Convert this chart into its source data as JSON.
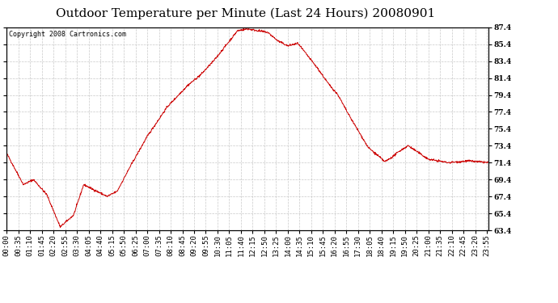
{
  "title": "Outdoor Temperature per Minute (Last 24 Hours) 20080901",
  "copyright": "Copyright 2008 Cartronics.com",
  "line_color": "#cc0000",
  "bg_color": "#ffffff",
  "plot_bg_color": "#ffffff",
  "grid_color": "#bbbbbb",
  "ylim": [
    63.4,
    87.4
  ],
  "yticks": [
    63.4,
    65.4,
    67.4,
    69.4,
    71.4,
    73.4,
    75.4,
    77.4,
    79.4,
    81.4,
    83.4,
    85.4,
    87.4
  ],
  "xtick_labels": [
    "00:00",
    "00:35",
    "01:10",
    "01:45",
    "02:20",
    "02:55",
    "03:30",
    "04:05",
    "04:40",
    "05:15",
    "05:50",
    "06:25",
    "07:00",
    "07:35",
    "08:10",
    "08:45",
    "09:20",
    "09:55",
    "10:30",
    "11:05",
    "11:40",
    "12:15",
    "12:50",
    "13:25",
    "14:00",
    "14:35",
    "15:10",
    "15:45",
    "16:20",
    "16:55",
    "17:30",
    "18:05",
    "18:40",
    "19:15",
    "19:50",
    "20:25",
    "21:00",
    "21:35",
    "22:10",
    "22:45",
    "23:20",
    "23:55"
  ],
  "title_fontsize": 11,
  "tick_fontsize": 6.5,
  "copyright_fontsize": 6,
  "keypoints_t": [
    0,
    50,
    80,
    120,
    160,
    200,
    230,
    260,
    300,
    330,
    370,
    420,
    480,
    540,
    580,
    620,
    660,
    690,
    720,
    750,
    780,
    810,
    840,
    870,
    900,
    930,
    960,
    990,
    1020,
    1050,
    1080,
    1110,
    1130,
    1150,
    1175,
    1200,
    1230,
    1260,
    1320,
    1380,
    1439
  ],
  "keypoints_v": [
    72.5,
    68.8,
    69.4,
    67.6,
    63.8,
    65.2,
    68.8,
    68.2,
    67.4,
    68.0,
    71.0,
    74.5,
    78.0,
    80.5,
    81.8,
    83.5,
    85.5,
    87.0,
    87.2,
    87.0,
    86.8,
    85.8,
    85.2,
    85.5,
    84.0,
    82.5,
    80.8,
    79.4,
    77.2,
    75.2,
    73.2,
    72.2,
    71.5,
    72.0,
    72.8,
    73.4,
    72.6,
    71.8,
    71.4,
    71.6,
    71.4
  ]
}
